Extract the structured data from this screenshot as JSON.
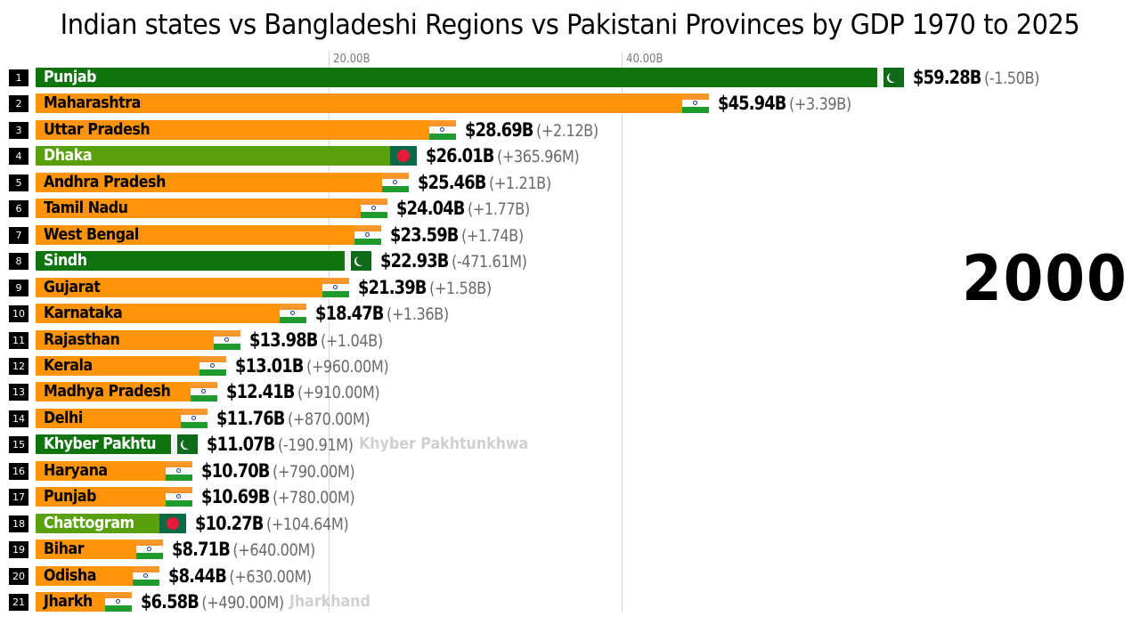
{
  "title": "Indian states vs Bangladeshi Regions vs Pakistani Provinces by GDP 1970 to 2025",
  "year": "2000",
  "axis": {
    "ticks": [
      {
        "label": "20.00B",
        "value": 20
      },
      {
        "label": "40.00B",
        "value": 40
      }
    ]
  },
  "colors": {
    "india": "#ff9409",
    "pakistan": "#0f730f",
    "bangladesh": "#58a10c",
    "india_text": "#000000",
    "pakistan_text": "#ffffff",
    "bangladesh_text": "#ffffff"
  },
  "rows": [
    {
      "rank": "1",
      "name": "Punjab",
      "label": "Punjab",
      "country": "pakistan",
      "value": 59.28,
      "value_label": "$59.28B",
      "delta": "(-1.50B)"
    },
    {
      "rank": "2",
      "name": "Maharashtra",
      "label": "Maharashtra",
      "country": "india",
      "value": 45.94,
      "value_label": "$45.94B",
      "delta": "(+3.39B)"
    },
    {
      "rank": "3",
      "name": "Uttar Pradesh",
      "label": "Uttar Pradesh",
      "country": "india",
      "value": 28.69,
      "value_label": "$28.69B",
      "delta": "(+2.12B)"
    },
    {
      "rank": "4",
      "name": "Dhaka",
      "label": "Dhaka",
      "country": "bangladesh",
      "value": 26.01,
      "value_label": "$26.01B",
      "delta": "(+365.96M)"
    },
    {
      "rank": "5",
      "name": "Andhra Pradesh",
      "label": "Andhra Pradesh",
      "country": "india",
      "value": 25.46,
      "value_label": "$25.46B",
      "delta": "(+1.21B)"
    },
    {
      "rank": "6",
      "name": "Tamil Nadu",
      "label": "Tamil Nadu",
      "country": "india",
      "value": 24.04,
      "value_label": "$24.04B",
      "delta": "(+1.77B)"
    },
    {
      "rank": "7",
      "name": "West Bengal",
      "label": "West Bengal",
      "country": "india",
      "value": 23.59,
      "value_label": "$23.59B",
      "delta": "(+1.74B)"
    },
    {
      "rank": "8",
      "name": "Sindh",
      "label": "Sindh",
      "country": "pakistan",
      "value": 22.93,
      "value_label": "$22.93B",
      "delta": "(-471.61M)"
    },
    {
      "rank": "9",
      "name": "Gujarat",
      "label": "Gujarat",
      "country": "india",
      "value": 21.39,
      "value_label": "$21.39B",
      "delta": "(+1.58B)"
    },
    {
      "rank": "10",
      "name": "Karnataka",
      "label": "Karnataka",
      "country": "india",
      "value": 18.47,
      "value_label": "$18.47B",
      "delta": "(+1.36B)"
    },
    {
      "rank": "11",
      "name": "Rajasthan",
      "label": "Rajasthan",
      "country": "india",
      "value": 13.98,
      "value_label": "$13.98B",
      "delta": "(+1.04B)"
    },
    {
      "rank": "12",
      "name": "Kerala",
      "label": "Kerala",
      "country": "india",
      "value": 13.01,
      "value_label": "$13.01B",
      "delta": "(+960.00M)"
    },
    {
      "rank": "13",
      "name": "Madhya Pradesh",
      "label": "Madhya Pradesh",
      "country": "india",
      "value": 12.41,
      "value_label": "$12.41B",
      "delta": "(+910.00M)"
    },
    {
      "rank": "14",
      "name": "Delhi",
      "label": "Delhi",
      "country": "india",
      "value": 11.76,
      "value_label": "$11.76B",
      "delta": "(+870.00M)"
    },
    {
      "rank": "15",
      "name": "Khyber Pakhtunkhwa",
      "label": "Khyber Pakhtu",
      "country": "pakistan",
      "value": 11.07,
      "value_label": "$11.07B",
      "delta": "(-190.91M)",
      "ghost": "Khyber Pakhtunkhwa"
    },
    {
      "rank": "16",
      "name": "Haryana",
      "label": "Haryana",
      "country": "india",
      "value": 10.7,
      "value_label": "$10.70B",
      "delta": "(+790.00M)"
    },
    {
      "rank": "17",
      "name": "Punjab",
      "label": "Punjab",
      "country": "india",
      "value": 10.69,
      "value_label": "$10.69B",
      "delta": "(+780.00M)"
    },
    {
      "rank": "18",
      "name": "Chattogram",
      "label": "Chattogram",
      "country": "bangladesh",
      "value": 10.27,
      "value_label": "$10.27B",
      "delta": "(+104.64M)"
    },
    {
      "rank": "19",
      "name": "Bihar",
      "label": "Bihar",
      "country": "india",
      "value": 8.71,
      "value_label": "$8.71B",
      "delta": "(+640.00M)"
    },
    {
      "rank": "20",
      "name": "Odisha",
      "label": "Odisha",
      "country": "india",
      "value": 8.44,
      "value_label": "$8.44B",
      "delta": "(+630.00M)"
    },
    {
      "rank": "21",
      "name": "Jharkhand",
      "label": "Jharkh",
      "country": "india",
      "value": 6.58,
      "value_label": "$6.58B",
      "delta": "(+490.00M)",
      "ghost": "Jharkhand"
    }
  ],
  "chart_data": {
    "type": "bar",
    "orientation": "horizontal",
    "title": "Indian states vs Bangladeshi Regions vs Pakistani Provinces by GDP 1970 to 2025",
    "annotation": "2000",
    "xlabel": "",
    "ylabel": "",
    "xlim": [
      0,
      60
    ],
    "x_ticks": [
      "20.00B",
      "40.00B"
    ],
    "grid": true,
    "legend": "flags per bar (India, Pakistan, Bangladesh)",
    "categories": [
      "Punjab (PK)",
      "Maharashtra",
      "Uttar Pradesh",
      "Dhaka",
      "Andhra Pradesh",
      "Tamil Nadu",
      "West Bengal",
      "Sindh",
      "Gujarat",
      "Karnataka",
      "Rajasthan",
      "Kerala",
      "Madhya Pradesh",
      "Delhi",
      "Khyber Pakhtunkhwa",
      "Haryana",
      "Punjab (IN)",
      "Chattogram",
      "Bihar",
      "Odisha",
      "Jharkhand"
    ],
    "values": [
      59.28,
      45.94,
      28.69,
      26.01,
      25.46,
      24.04,
      23.59,
      22.93,
      21.39,
      18.47,
      13.98,
      13.01,
      12.41,
      11.76,
      11.07,
      10.7,
      10.69,
      10.27,
      8.71,
      8.44,
      6.58
    ],
    "units": "USD billions",
    "changes": [
      "-1.50B",
      "+3.39B",
      "+2.12B",
      "+365.96M",
      "+1.21B",
      "+1.77B",
      "+1.74B",
      "-471.61M",
      "+1.58B",
      "+1.36B",
      "+1.04B",
      "+960.00M",
      "+910.00M",
      "+870.00M",
      "-190.91M",
      "+790.00M",
      "+780.00M",
      "+104.64M",
      "+640.00M",
      "+630.00M",
      "+490.00M"
    ],
    "countries": [
      "Pakistan",
      "India",
      "India",
      "Bangladesh",
      "India",
      "India",
      "India",
      "Pakistan",
      "India",
      "India",
      "India",
      "India",
      "India",
      "India",
      "Pakistan",
      "India",
      "India",
      "Bangladesh",
      "India",
      "India",
      "India"
    ]
  }
}
